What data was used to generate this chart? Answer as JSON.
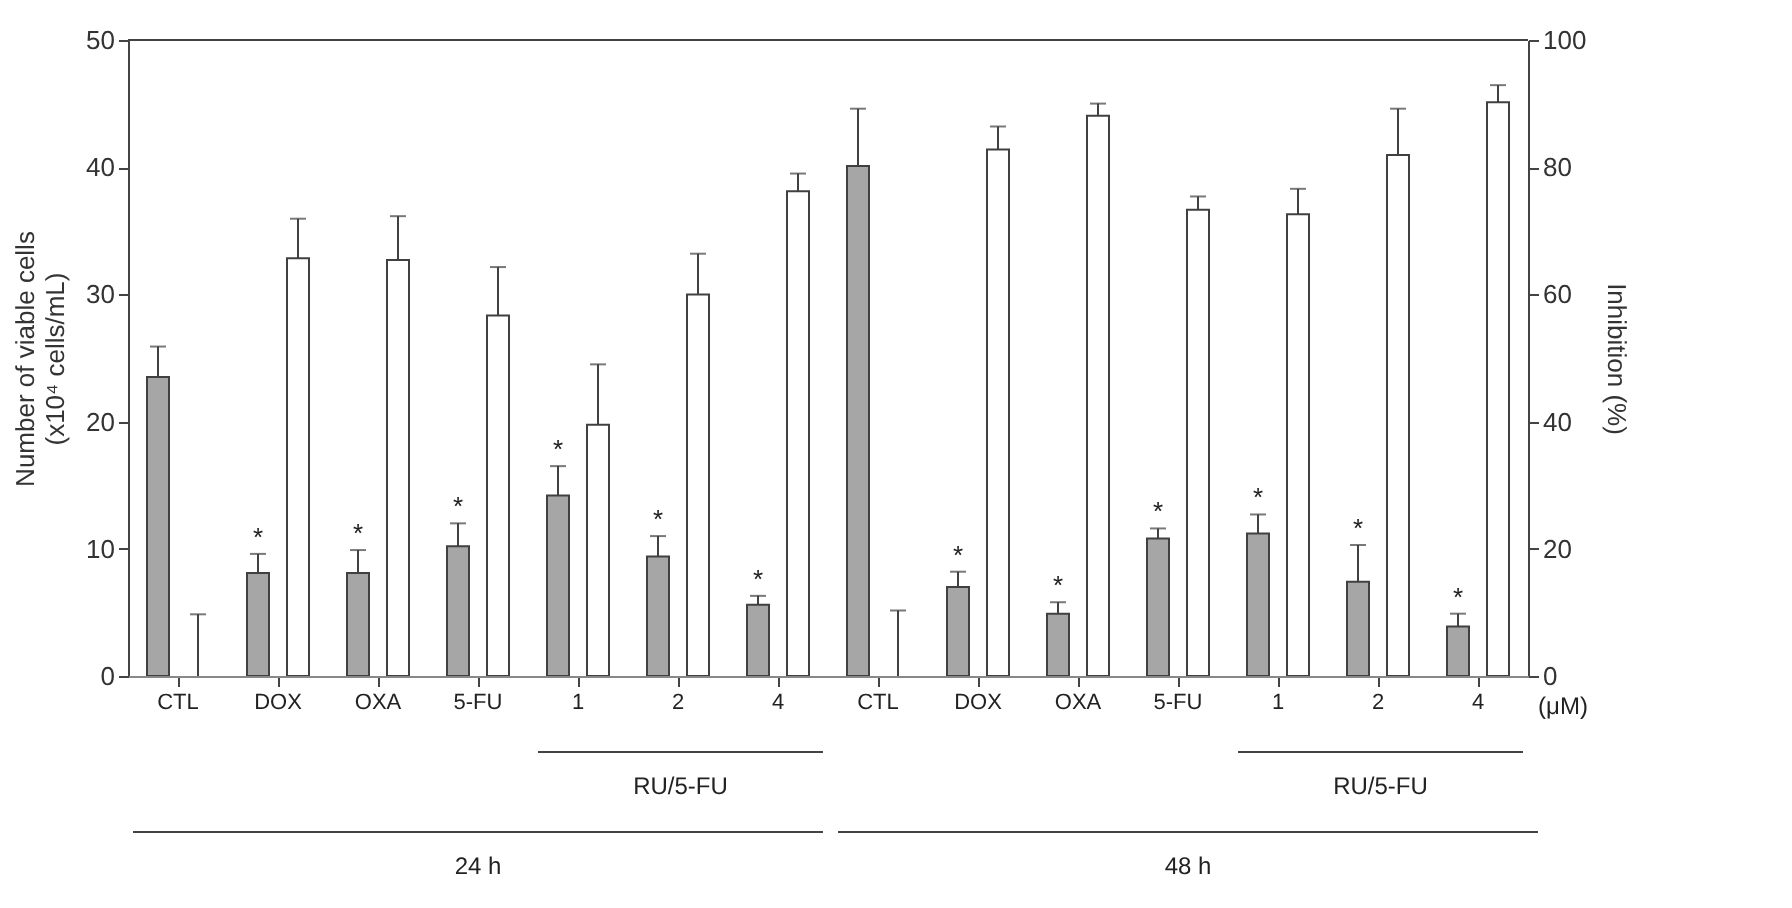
{
  "chart_data": {
    "type": "bar",
    "categories": [
      "CTL",
      "DOX",
      "OXA",
      "5-FU",
      "1",
      "2",
      "4",
      "CTL",
      "DOX",
      "OXA",
      "5-FU",
      "1",
      "2",
      "4"
    ],
    "ylabel": "Number of viable cells\n(x10⁴ cells/mL)",
    "y2label": "Inhibition (%)",
    "ylim": [
      0,
      50
    ],
    "yticks": [
      0,
      10,
      20,
      30,
      40,
      50
    ],
    "y2lim": [
      0,
      100
    ],
    "y2ticks": [
      0,
      20,
      40,
      60,
      80,
      100
    ],
    "annotations": [
      "(μM)",
      "RU/5-FU",
      "RU/5-FU",
      "24 h",
      "48 h"
    ],
    "series": [
      {
        "color": "#a6a6a6",
        "values": [
          23.5,
          8.1,
          8.1,
          10.2,
          14.2,
          9.4,
          5.6,
          40.1,
          7.0,
          4.9,
          10.8,
          11.2,
          7.4,
          3.9
        ],
        "errors": [
          [
            23.5,
            25.9
          ],
          [
            8.1,
            9.6
          ],
          [
            8.1,
            9.9
          ],
          [
            10.2,
            12.0
          ],
          [
            14.2,
            16.5
          ],
          [
            9.4,
            11.0
          ],
          [
            5.6,
            6.3
          ],
          [
            40.1,
            44.6
          ],
          [
            7.0,
            8.2
          ],
          [
            4.9,
            5.8
          ],
          [
            10.8,
            11.6
          ],
          [
            11.2,
            12.7
          ],
          [
            7.4,
            10.3
          ],
          [
            3.9,
            4.9
          ]
        ],
        "value_labels": [
          null,
          "*",
          "*",
          "*",
          "*",
          "*",
          "*",
          null,
          "*",
          "*",
          "*",
          "*",
          "*",
          "*"
        ]
      },
      {
        "color": "#ffffff",
        "axis": "y2",
        "values": [
          0,
          65.7,
          65.4,
          56.7,
          39.5,
          60,
          76.2,
          0,
          82.8,
          88.1,
          73.3,
          72.6,
          81.9,
          90.2
        ],
        "errors": [
          [
            0,
            9.7
          ],
          [
            65.7,
            71.9
          ],
          [
            65.4,
            72.3
          ],
          [
            56.7,
            64.3
          ],
          [
            39.5,
            49
          ],
          [
            60,
            66.4
          ],
          [
            76.2,
            79
          ],
          [
            0,
            10.3
          ],
          [
            82.8,
            86.4
          ],
          [
            88.1,
            90
          ],
          [
            73.3,
            75.4
          ],
          [
            72.6,
            76.6
          ],
          [
            81.9,
            89.2
          ],
          [
            90.2,
            92.9
          ]
        ]
      }
    ]
  }
}
